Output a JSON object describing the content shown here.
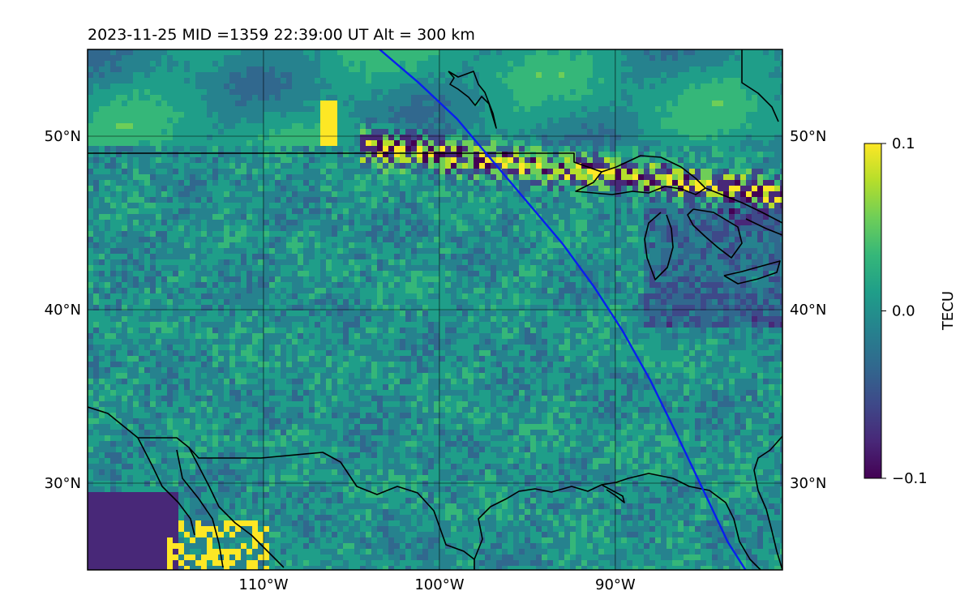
{
  "header": {
    "title": "2023-11-25  MID =1359    22:39:00  UT  Alt = 300 km"
  },
  "map": {
    "extent": {
      "lon_min": -120,
      "lon_max": -80.5,
      "lat_min": 25,
      "lat_max": 55
    },
    "lat_ticks": [
      {
        "value": 30,
        "label": "30°N"
      },
      {
        "value": 40,
        "label": "40°N"
      },
      {
        "value": 50,
        "label": "50°N"
      }
    ],
    "lon_ticks": [
      {
        "value": -110,
        "label": "110°W"
      },
      {
        "value": -100,
        "label": "100°W"
      },
      {
        "value": -90,
        "label": "90°W"
      }
    ],
    "gridlines": true,
    "satellite_track_color": "#0a1ef0",
    "satellite_track": [
      [
        -103.4,
        55
      ],
      [
        -101.2,
        53.1
      ],
      [
        -99,
        51
      ],
      [
        -97,
        48.6
      ],
      [
        -95,
        46.2
      ],
      [
        -93,
        43.8
      ],
      [
        -91.2,
        41.3
      ],
      [
        -89.6,
        38.8
      ],
      [
        -88,
        35.9
      ],
      [
        -86.5,
        32.8
      ],
      [
        -85,
        29.6
      ],
      [
        -83.6,
        26.6
      ],
      [
        -82.6,
        25
      ]
    ]
  },
  "colorbar": {
    "label": "TECU",
    "colormap": "viridis",
    "vmin": -0.1,
    "vmax": 0.1,
    "ticks": [
      {
        "value": 0.1,
        "label": "0.1"
      },
      {
        "value": 0.0,
        "label": "0.0"
      },
      {
        "value": -0.1,
        "label": "−0.1"
      }
    ]
  },
  "colors": {
    "viridis": [
      "#440154",
      "#482878",
      "#3e4989",
      "#31688e",
      "#26828e",
      "#1f9e89",
      "#35b779",
      "#6ece58",
      "#b5de2b",
      "#fde725"
    ]
  }
}
